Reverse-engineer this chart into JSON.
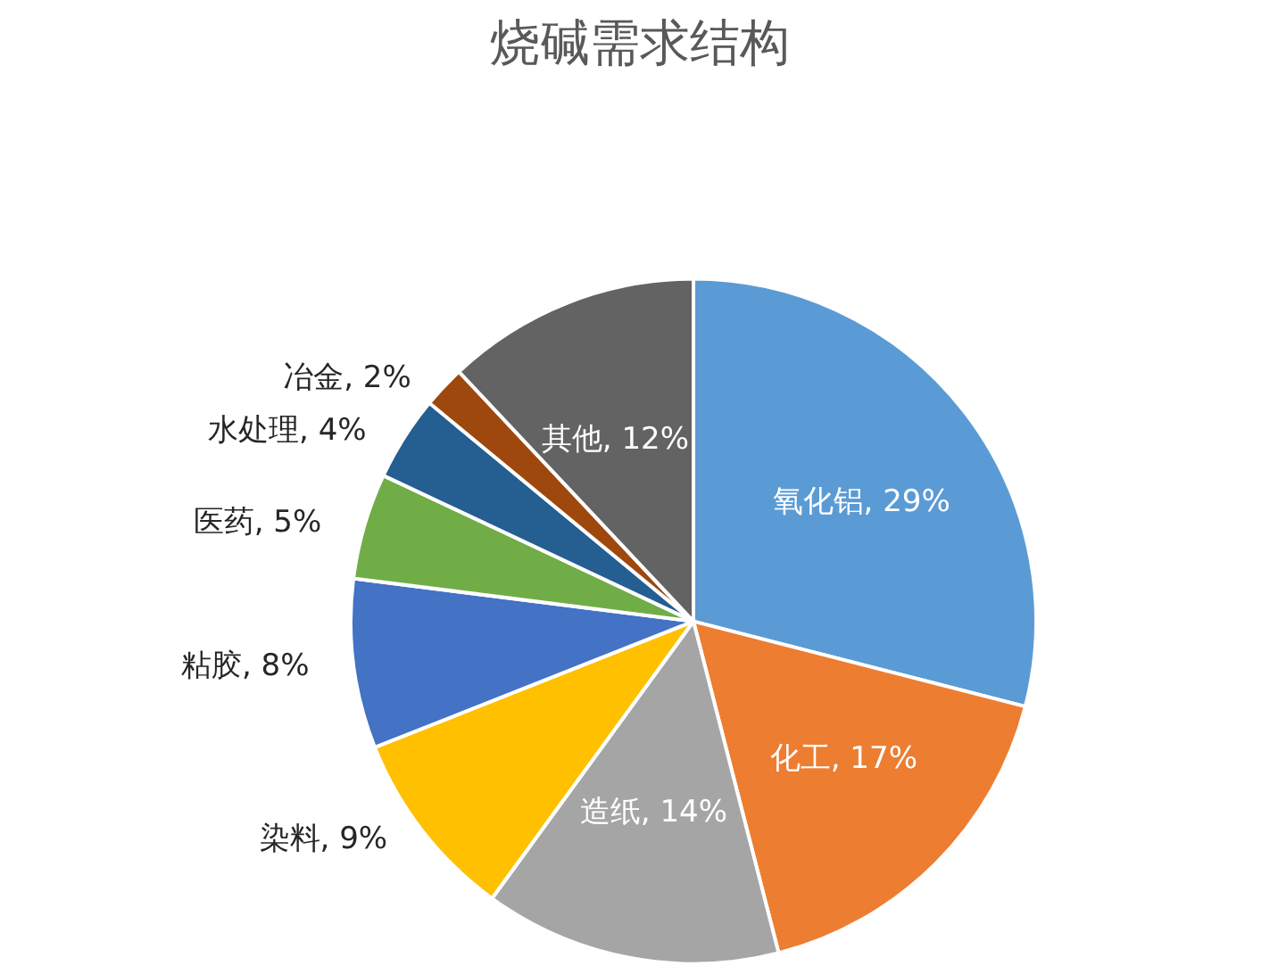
{
  "chart_data": {
    "type": "pie",
    "title": "烧碱需求结构",
    "categories": [
      "氧化铝",
      "化工",
      "造纸",
      "染料",
      "粘胶",
      "医药",
      "水处理",
      "冶金",
      "其他"
    ],
    "values": [
      29,
      17,
      14,
      9,
      8,
      5,
      4,
      2,
      12
    ],
    "colors": [
      "#5b9bd5",
      "#ed7d31",
      "#a5a5a5",
      "#ffc000",
      "#4472c4",
      "#70ad47",
      "#255e91",
      "#9e480e",
      "#636363"
    ],
    "value_labels": [
      "29%",
      "17%",
      "14%",
      "9%",
      "8%",
      "5%",
      "4%",
      "2%",
      "12%"
    ]
  }
}
